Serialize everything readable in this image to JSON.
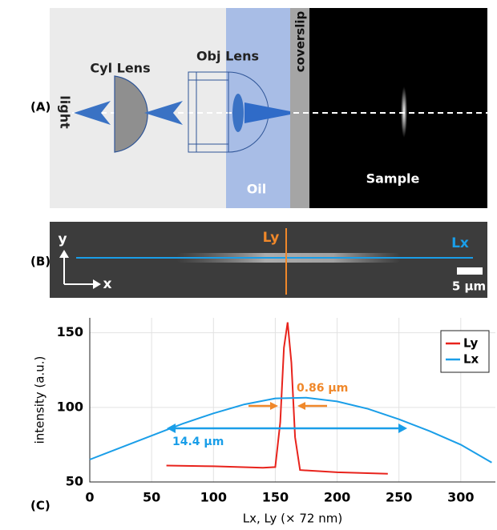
{
  "panels": {
    "a": {
      "label": "(A)",
      "light": "light",
      "cyl_lens": "Cyl Lens",
      "obj_lens": "Obj Lens",
      "coverslip": "coverslip",
      "oil": "Oil",
      "sample": "Sample"
    },
    "b": {
      "label": "(B)",
      "y": "y",
      "x": "x",
      "ly": "Ly",
      "lx": "Lx",
      "scale_bar": "5 μm"
    },
    "c": {
      "label": "(C)"
    }
  },
  "chart_data": {
    "type": "line",
    "xlabel": "Lx, Ly (× 72 nm)",
    "ylabel": "intensity (a.u.)",
    "xlim": [
      0,
      328
    ],
    "ylim": [
      50,
      160
    ],
    "xticks": [
      0,
      50,
      100,
      150,
      200,
      250,
      300
    ],
    "yticks": [
      50,
      100,
      150
    ],
    "grid": true,
    "legend": "upper right",
    "annotations": [
      {
        "text": "0.86 μm",
        "color": "#f0882a"
      },
      {
        "text": "14.4 μm",
        "color": "#1a9ee8"
      }
    ],
    "series": [
      {
        "name": "Ly",
        "color": "#e8231c",
        "x": [
          62,
          100,
          140,
          150,
          154,
          157,
          160,
          163,
          166,
          170,
          200,
          241
        ],
        "values": [
          61,
          60.5,
          59.5,
          60,
          90,
          140,
          157,
          130,
          80,
          58,
          56.5,
          55.5
        ]
      },
      {
        "name": "Lx",
        "color": "#1a9ee8",
        "x": [
          0,
          25,
          50,
          75,
          100,
          125,
          150,
          175,
          200,
          225,
          250,
          275,
          300,
          325
        ],
        "values": [
          65,
          73,
          81,
          89,
          96,
          102,
          106,
          106.5,
          104,
          99,
          92,
          84,
          75,
          63
        ]
      }
    ]
  }
}
